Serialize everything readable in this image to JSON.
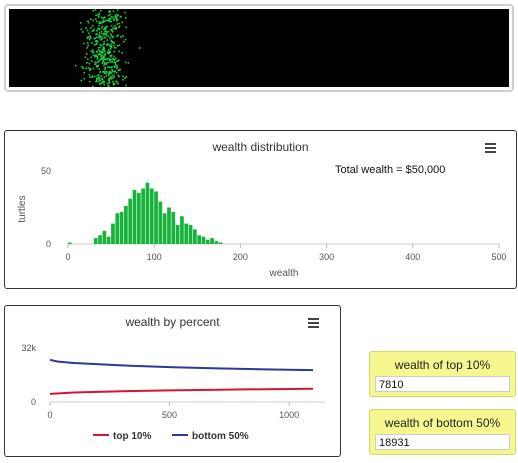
{
  "wealth_distribution": {
    "title": "wealth distribution",
    "annotation": "Total wealth = $50,000",
    "ylabel": "turtles",
    "xlabel": "wealth",
    "x_ticks": [
      "0",
      "100",
      "200",
      "300",
      "400",
      "500"
    ],
    "y_ticks": [
      "0",
      "50"
    ],
    "chart_data": {
      "type": "bar",
      "title": "wealth distribution",
      "xlabel": "wealth",
      "ylabel": "turtles",
      "xlim": [
        0,
        500
      ],
      "ylim": [
        0,
        50
      ],
      "bin_width": 5,
      "bins": [
        {
          "x": 0,
          "value": 1
        },
        {
          "x": 30,
          "value": 4
        },
        {
          "x": 35,
          "value": 6
        },
        {
          "x": 40,
          "value": 9
        },
        {
          "x": 45,
          "value": 5
        },
        {
          "x": 50,
          "value": 14
        },
        {
          "x": 55,
          "value": 21
        },
        {
          "x": 60,
          "value": 22
        },
        {
          "x": 65,
          "value": 26
        },
        {
          "x": 70,
          "value": 31
        },
        {
          "x": 75,
          "value": 37
        },
        {
          "x": 80,
          "value": 35
        },
        {
          "x": 85,
          "value": 38
        },
        {
          "x": 90,
          "value": 42
        },
        {
          "x": 95,
          "value": 38
        },
        {
          "x": 100,
          "value": 36
        },
        {
          "x": 105,
          "value": 29
        },
        {
          "x": 110,
          "value": 21
        },
        {
          "x": 115,
          "value": 25
        },
        {
          "x": 120,
          "value": 22
        },
        {
          "x": 125,
          "value": 13
        },
        {
          "x": 130,
          "value": 19
        },
        {
          "x": 135,
          "value": 14
        },
        {
          "x": 140,
          "value": 13
        },
        {
          "x": 145,
          "value": 10
        },
        {
          "x": 150,
          "value": 6
        },
        {
          "x": 155,
          "value": 5
        },
        {
          "x": 160,
          "value": 3
        },
        {
          "x": 165,
          "value": 4
        },
        {
          "x": 170,
          "value": 2
        },
        {
          "x": 175,
          "value": 1
        }
      ],
      "color": "#17b33a"
    }
  },
  "wealth_by_percent": {
    "title": "wealth by percent",
    "y_ticks": [
      "32k",
      "0"
    ],
    "x_ticks": [
      "0",
      "500",
      "1000"
    ],
    "legend": [
      {
        "label": "top 10%",
        "color": "#d9142b"
      },
      {
        "label": "bottom 50%",
        "color": "#2b3a96"
      }
    ],
    "chart_data": {
      "type": "line",
      "title": "wealth by percent",
      "ylim": [
        0,
        32000
      ],
      "xlim": [
        0,
        1150
      ],
      "series": [
        {
          "name": "top 10%",
          "color": "#d9142b",
          "x": [
            0,
            100,
            300,
            500,
            700,
            900,
            1100
          ],
          "values": [
            4800,
            5600,
            6400,
            6900,
            7300,
            7600,
            7810
          ]
        },
        {
          "name": "bottom 50%",
          "color": "#2b3a96",
          "x": [
            0,
            30,
            100,
            300,
            500,
            700,
            900,
            1100
          ],
          "values": [
            25000,
            24000,
            23100,
            21700,
            20700,
            19900,
            19300,
            18931
          ]
        }
      ]
    }
  },
  "monitors": {
    "top10": {
      "label": "wealth of top 10%",
      "value": "7810"
    },
    "bottom50": {
      "label": "wealth of bottom 50%",
      "value": "18931"
    }
  },
  "colors": {
    "turtle": "#19d43e",
    "view_bg": "#000000",
    "monitor_bg": "#f7f78f"
  }
}
